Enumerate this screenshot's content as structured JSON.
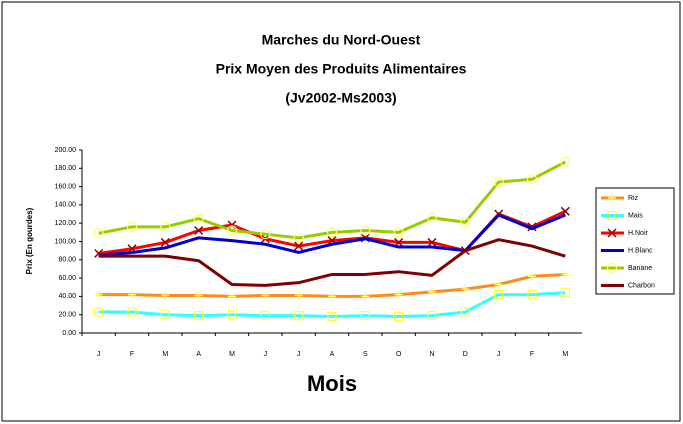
{
  "chart_data": {
    "type": "line",
    "title": "Marches du Nord-Ouest",
    "subtitle": "Prix Moyen des Produits Alimentaires",
    "period": "(Jv2002-Ms2003)",
    "x_label": "Mois",
    "y_label": "Prix (En gourdes)",
    "categories": [
      "J",
      "F",
      "M",
      "A",
      "M",
      "J",
      "J",
      "A",
      "S",
      "O",
      "N",
      "D",
      "J",
      "F",
      "M"
    ],
    "ylim": [
      0,
      200
    ],
    "yticks": [
      {
        "value": 0,
        "label": "0.00"
      },
      {
        "value": 20,
        "label": "20.00"
      },
      {
        "value": 40,
        "label": "40.00"
      },
      {
        "value": 60,
        "label": "60.00"
      },
      {
        "value": 80,
        "label": "80.00"
      },
      {
        "value": 100,
        "label": "100.00"
      },
      {
        "value": 120,
        "label": "120.00"
      },
      {
        "value": 140,
        "label": "140.00"
      },
      {
        "value": 160,
        "label": "160.00"
      },
      {
        "value": 180,
        "label": "180.00"
      },
      {
        "value": 200,
        "label": "200.00"
      }
    ],
    "grid": false,
    "legend": "right",
    "series": [
      {
        "name": "Riz",
        "color": "#ff8c1a",
        "marker": "plus",
        "marker_color": "#ffff66",
        "values": [
          42,
          42,
          41,
          41,
          40,
          41,
          41,
          40,
          40,
          42,
          45,
          48,
          53,
          62,
          64
        ]
      },
      {
        "name": "Mais",
        "color": "#33ffff",
        "marker": "square",
        "marker_color": "#ffff33",
        "values": [
          23,
          23,
          20,
          19,
          20,
          19,
          19,
          18,
          19,
          18,
          19,
          23,
          42,
          42,
          44
        ]
      },
      {
        "name": "H.Noir",
        "color": "#ff0000",
        "marker": "x",
        "marker_color": "#990000",
        "values": [
          87,
          92,
          99,
          112,
          118,
          103,
          95,
          101,
          104,
          99,
          99,
          90,
          130,
          116,
          133
        ]
      },
      {
        "name": "H.Blanc",
        "color": "#0000cc",
        "marker": "none",
        "marker_color": "#0000cc",
        "values": [
          85,
          88,
          93,
          104,
          101,
          97,
          88,
          97,
          103,
          94,
          94,
          90,
          129,
          114,
          129
        ]
      },
      {
        "name": "Banane",
        "color": "#99cc00",
        "marker": "circle",
        "marker_color": "#ffff66",
        "values": [
          109,
          116,
          116,
          125,
          112,
          108,
          104,
          110,
          112,
          110,
          126,
          121,
          165,
          168,
          187
        ]
      },
      {
        "name": "Charbon",
        "color": "#800000",
        "marker": "none",
        "marker_color": "#800000",
        "values": [
          84,
          84,
          84,
          79,
          53,
          52,
          55,
          64,
          64,
          67,
          63,
          90,
          102,
          95,
          84
        ]
      }
    ]
  }
}
